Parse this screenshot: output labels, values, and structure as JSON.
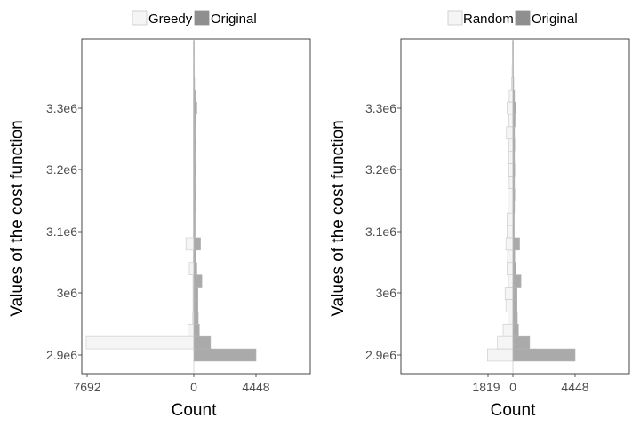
{
  "chart_data": [
    {
      "type": "bar",
      "orientation": "horizontal-mirrored",
      "title": "",
      "xlabel": "Count",
      "ylabel": "Values of the cost function",
      "yticks": [
        "2.9e6",
        "3e6",
        "3.1e6",
        "3.2e6",
        "3.3e6"
      ],
      "ytick_values": [
        2900000,
        3000000,
        3100000,
        3200000,
        3300000
      ],
      "xticks": [
        "7692",
        "0",
        "4448"
      ],
      "xtick_values": [
        -7692,
        0,
        4448
      ],
      "xlim": [
        -8400,
        8400
      ],
      "ylim": [
        2870000,
        3400000
      ],
      "bin_width": 20000,
      "grid": false,
      "legend_position": "top",
      "series": [
        {
          "name": "Greedy",
          "side": "left",
          "color": "#f5f5f5",
          "bins": [
            2900000,
            2920000,
            2940000,
            2960000,
            2980000,
            3000000,
            3020000,
            3040000,
            3060000,
            3080000,
            3100000,
            3120000,
            3140000,
            3160000,
            3180000,
            3200000,
            3220000,
            3240000,
            3260000,
            3280000,
            3300000,
            3320000,
            3340000,
            3360000,
            3380000,
            3400000
          ],
          "values": [
            0,
            7692,
            400,
            80,
            60,
            60,
            60,
            320,
            40,
            560,
            20,
            20,
            20,
            20,
            20,
            20,
            20,
            20,
            20,
            20,
            20,
            20,
            10,
            10,
            10,
            5
          ]
        },
        {
          "name": "Original",
          "side": "right",
          "color": "#aaaaaa",
          "bins": [
            2900000,
            2920000,
            2940000,
            2960000,
            2980000,
            3000000,
            3020000,
            3040000,
            3060000,
            3080000,
            3100000,
            3120000,
            3140000,
            3160000,
            3180000,
            3200000,
            3220000,
            3240000,
            3260000,
            3280000,
            3300000,
            3320000,
            3340000,
            3360000,
            3380000,
            3400000
          ],
          "values": [
            4448,
            1200,
            400,
            320,
            300,
            300,
            580,
            220,
            140,
            480,
            100,
            100,
            120,
            140,
            120,
            140,
            120,
            140,
            120,
            160,
            220,
            120,
            60,
            30,
            20,
            10
          ]
        }
      ]
    },
    {
      "type": "bar",
      "orientation": "horizontal-mirrored",
      "title": "",
      "xlabel": "Count",
      "ylabel": "Values of the cost function",
      "yticks": [
        "2.9e6",
        "3e6",
        "3.1e6",
        "3.2e6",
        "3.3e6"
      ],
      "ytick_values": [
        2900000,
        3000000,
        3100000,
        3200000,
        3300000
      ],
      "xticks": [
        "1819",
        "0",
        "4448"
      ],
      "xtick_values": [
        -1819,
        0,
        4448
      ],
      "xlim": [
        -8400,
        8400
      ],
      "ylim": [
        2870000,
        3400000
      ],
      "bin_width": 20000,
      "grid": false,
      "legend_position": "top",
      "series": [
        {
          "name": "Random",
          "side": "left",
          "color": "#f5f5f5",
          "bins": [
            2900000,
            2920000,
            2940000,
            2960000,
            2980000,
            3000000,
            3020000,
            3040000,
            3060000,
            3080000,
            3100000,
            3120000,
            3140000,
            3160000,
            3180000,
            3200000,
            3220000,
            3240000,
            3260000,
            3280000,
            3300000,
            3320000,
            3340000,
            3360000,
            3380000,
            3400000
          ],
          "values": [
            1819,
            1100,
            700,
            360,
            500,
            560,
            320,
            420,
            380,
            500,
            420,
            420,
            360,
            340,
            260,
            300,
            280,
            300,
            460,
            300,
            420,
            260,
            100,
            60,
            30,
            10
          ]
        },
        {
          "name": "Original",
          "side": "right",
          "color": "#aaaaaa",
          "bins": [
            2900000,
            2920000,
            2940000,
            2960000,
            2980000,
            3000000,
            3020000,
            3040000,
            3060000,
            3080000,
            3100000,
            3120000,
            3140000,
            3160000,
            3180000,
            3200000,
            3220000,
            3240000,
            3260000,
            3280000,
            3300000,
            3320000,
            3340000,
            3360000,
            3380000,
            3400000
          ],
          "values": [
            4448,
            1200,
            400,
            320,
            300,
            300,
            580,
            220,
            140,
            480,
            100,
            100,
            120,
            140,
            120,
            140,
            120,
            140,
            120,
            160,
            220,
            120,
            60,
            30,
            20,
            10
          ]
        }
      ]
    }
  ]
}
